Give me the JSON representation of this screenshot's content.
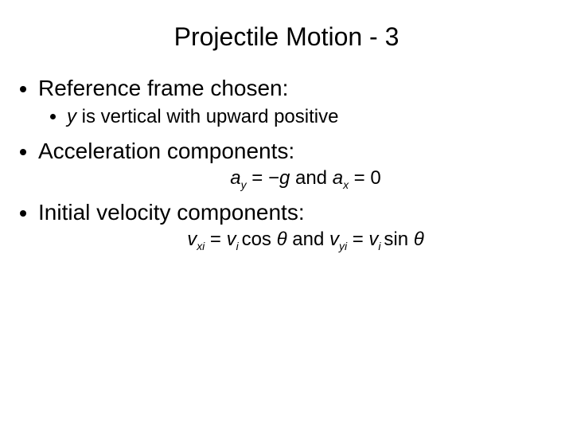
{
  "colors": {
    "background": "#ffffff",
    "text": "#000000"
  },
  "typography": {
    "family": "Arial",
    "title_fontsize": 32,
    "bullet_fontsize": 28,
    "sub_bullet_fontsize": 24,
    "equation_fontsize": 24
  },
  "title": "Projectile Motion - 3",
  "bullets": {
    "b1": {
      "text": "Reference frame chosen:",
      "sub": {
        "s1_prefix": "y",
        "s1_rest": " is vertical with upward positive"
      }
    },
    "b2": {
      "text": "Acceleration components:",
      "eq": {
        "a": "a",
        "sub_y": "y",
        "eq1": " = ",
        "minus": "−",
        "g": "g",
        "and": " and ",
        "sub_x": "x",
        "eq2": " = 0"
      }
    },
    "b3": {
      "text": "Initial velocity components:",
      "eq": {
        "v": "v",
        "sub_xi": "xi",
        "eq1": " = ",
        "sub_i": "i ",
        "cos": "cos ",
        "theta": "θ",
        "and": " and ",
        "sub_yi": "yi",
        "sin": "sin "
      }
    }
  }
}
